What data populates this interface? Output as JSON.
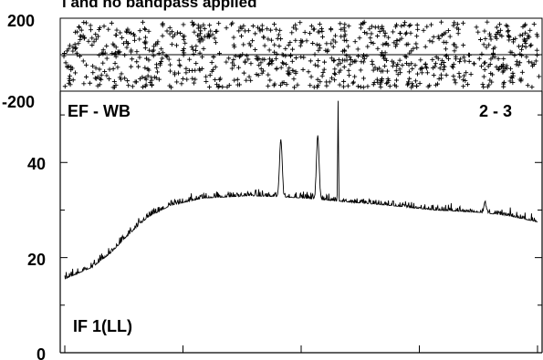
{
  "chart_data": [
    {
      "type": "scatter",
      "title": "l and no bandpass applied",
      "ylim": [
        -200,
        200
      ],
      "y_ticks": [
        "200",
        "-200"
      ],
      "marker": "plus",
      "num_points": 900,
      "value_range": [
        -180,
        180
      ],
      "note": "dense random phase scatter across full channel range"
    },
    {
      "type": "line",
      "labels": {
        "top_left": "EF - WB",
        "top_right": "2 - 3",
        "bottom_left": "IF 1(LL)"
      },
      "ylim": [
        0,
        55
      ],
      "y_ticks": [
        "40",
        "20",
        "0"
      ],
      "xlim": [
        0,
        1024
      ],
      "baseline_points": [
        [
          0,
          15.5
        ],
        [
          60,
          18
        ],
        [
          100,
          21
        ],
        [
          140,
          25
        ],
        [
          180,
          28.5
        ],
        [
          230,
          31
        ],
        [
          300,
          32.5
        ],
        [
          400,
          33
        ],
        [
          460,
          32.8
        ],
        [
          520,
          32.5
        ],
        [
          600,
          31.8
        ],
        [
          700,
          31
        ],
        [
          800,
          30
        ],
        [
          900,
          29.5
        ],
        [
          960,
          28.8
        ],
        [
          1024,
          27.5
        ]
      ],
      "peaks": [
        {
          "x": 468,
          "height": 45
        },
        {
          "x": 548,
          "height": 45.8
        },
        {
          "x": 592,
          "height": 53
        },
        {
          "x": 910,
          "height": 31.5
        }
      ],
      "noise_amplitude": 1.2,
      "color": "#000000"
    }
  ]
}
